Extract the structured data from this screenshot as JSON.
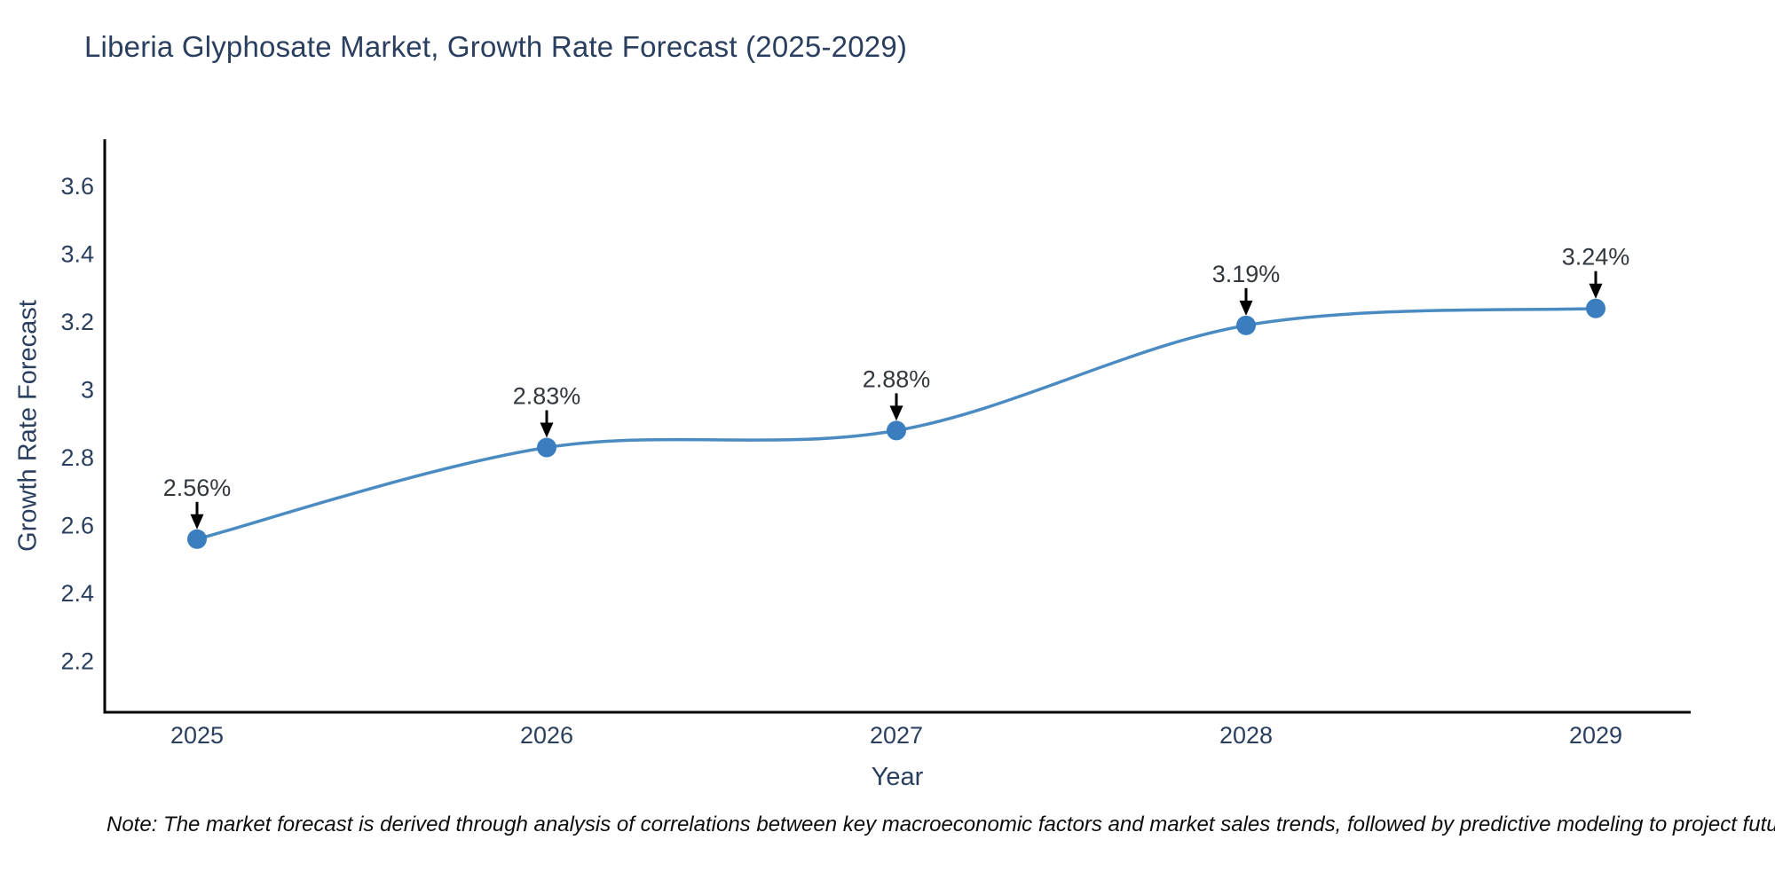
{
  "title": "Liberia Glyphosate Market, Growth Rate Forecast (2025-2029)",
  "note": "Note: The market forecast is derived through analysis of correlations between key macroeconomic factors and market sales trends, followed by predictive modeling to project future sales",
  "chart_data": {
    "type": "line",
    "line_shape": "spline",
    "title": "Liberia Glyphosate Market, Growth Rate Forecast (2025-2029)",
    "xlabel": "Year",
    "ylabel": "Growth Rate Forecast",
    "x": [
      "2025",
      "2026",
      "2027",
      "2028",
      "2029"
    ],
    "y": [
      2.56,
      2.83,
      2.88,
      3.19,
      3.24
    ],
    "point_labels": [
      "2.56%",
      "2.83%",
      "2.88%",
      "3.19%",
      "3.24%"
    ],
    "ytick_values": [
      3.6,
      3.4,
      3.2,
      3.0,
      2.8,
      2.6,
      2.4,
      2.2
    ],
    "ytick_labels": [
      "3.6",
      "3.4",
      "3.2",
      "3",
      "2.8",
      "2.6",
      "2.4",
      "2.2"
    ],
    "ylim": [
      2.05,
      3.74
    ],
    "grid": false,
    "legend": false,
    "colors": {
      "line": "#4a8bc2",
      "marker": "#3a7ebf",
      "axis": "#000000",
      "axis_text": "#2a3f5f",
      "annotation_text": "#32383e",
      "annotation_arrow": "#000000",
      "background": "#ffffff"
    }
  }
}
